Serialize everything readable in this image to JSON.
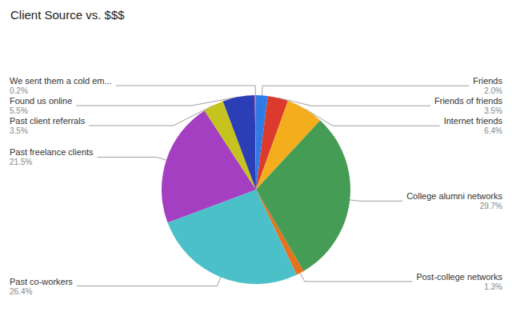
{
  "chart_data": {
    "type": "pie",
    "title": "Client Source vs. $$$",
    "categories": [
      "Friends",
      "Friends of friends",
      "Internet friends",
      "College alumni networks",
      "Post-college networks",
      "Past co-workers",
      "Past freelance clients",
      "Past client referrals",
      "Found us online",
      "We sent them a cold em..."
    ],
    "values": [
      2.0,
      3.5,
      6.4,
      29.7,
      1.3,
      26.4,
      21.5,
      3.5,
      5.5,
      0.2
    ],
    "value_labels": [
      "2.0%",
      "3.5%",
      "6.4%",
      "29.7%",
      "1.3%",
      "26.4%",
      "21.5%",
      "3.5%",
      "5.5%",
      "0.2%"
    ],
    "colors": [
      "#2f7be6",
      "#db3a2c",
      "#f4ad1c",
      "#459d55",
      "#e8711c",
      "#4cc0c9",
      "#a43fc2",
      "#c6c21f",
      "#2b3eb5",
      "#e8629c"
    ],
    "data_labels": true
  }
}
